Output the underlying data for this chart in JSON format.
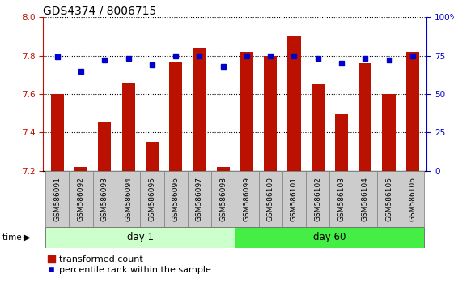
{
  "title": "GDS4374 / 8006715",
  "samples": [
    "GSM586091",
    "GSM586092",
    "GSM586093",
    "GSM586094",
    "GSM586095",
    "GSM586096",
    "GSM586097",
    "GSM586098",
    "GSM586099",
    "GSM586100",
    "GSM586101",
    "GSM586102",
    "GSM586103",
    "GSM586104",
    "GSM586105",
    "GSM586106"
  ],
  "bar_values": [
    7.6,
    7.22,
    7.45,
    7.66,
    7.35,
    7.77,
    7.84,
    7.22,
    7.82,
    7.8,
    7.9,
    7.65,
    7.5,
    7.76,
    7.6,
    7.82
  ],
  "dot_values": [
    74,
    65,
    72,
    73,
    69,
    75,
    75,
    68,
    75,
    75,
    75,
    73,
    70,
    73,
    72,
    75
  ],
  "bar_color": "#bb1100",
  "dot_color": "#0000cc",
  "ylim_left": [
    7.2,
    8.0
  ],
  "ylim_right": [
    0,
    100
  ],
  "yticks_left": [
    7.2,
    7.4,
    7.6,
    7.8,
    8.0
  ],
  "yticks_right": [
    0,
    25,
    50,
    75,
    100
  ],
  "yticklabels_right": [
    "0",
    "25",
    "50",
    "75",
    "100%"
  ],
  "day1_label": "day 1",
  "day60_label": "day 60",
  "day1_count": 8,
  "day60_count": 8,
  "day1_color": "#ccffcc",
  "day60_color": "#44ee44",
  "time_label": "time",
  "legend_bar_label": "transformed count",
  "legend_dot_label": "percentile rank within the sample",
  "bar_bottom": 7.2,
  "xlabel_area_color": "#cccccc",
  "xlabel_border_color": "#888888",
  "background_color": "#ffffff",
  "grid_color": "#000000",
  "title_fontsize": 10,
  "tick_fontsize": 7.5,
  "sample_fontsize": 6.5,
  "label_fontsize": 8.5,
  "legend_fontsize": 8
}
